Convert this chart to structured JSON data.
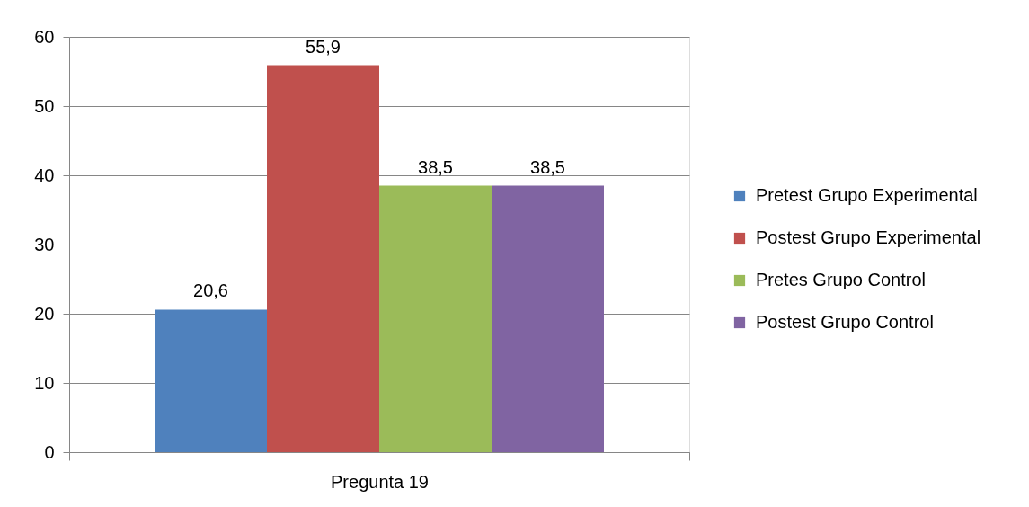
{
  "chart_data": {
    "type": "bar",
    "categories": [
      "Pregunta 19"
    ],
    "series": [
      {
        "name": "Pretest Grupo Experimental",
        "color": "#4f81bd",
        "values": [
          20.6
        ],
        "value_labels": [
          "20,6"
        ]
      },
      {
        "name": "Postest Grupo Experimental",
        "color": "#c0504d",
        "values": [
          55.9
        ],
        "value_labels": [
          "55,9"
        ]
      },
      {
        "name": "Pretes Grupo Control",
        "color": "#9bbb59",
        "values": [
          38.5
        ],
        "value_labels": [
          "38,5"
        ]
      },
      {
        "name": "Postest Grupo Control",
        "color": "#8064a2",
        "values": [
          38.5
        ],
        "value_labels": [
          "38,5"
        ]
      }
    ],
    "ylim": [
      0,
      60
    ],
    "yticks": [
      0,
      10,
      20,
      30,
      40,
      50,
      60
    ],
    "grid": "y",
    "legend": "right"
  }
}
